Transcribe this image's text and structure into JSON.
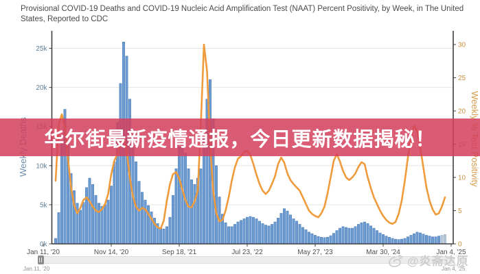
{
  "title": "Provisional COVID-19 Deaths and COVID-19 Nucleic Acid Amplification Test (NAAT) Percent Positivity, by Week, in The United States, Reported to CDC",
  "banner": {
    "text": "华尔街最新疫情通报，今日更新数据揭秘！",
    "bg_rgba": "rgba(211,62,92,0.85)",
    "text_color": "#ffffff"
  },
  "slider": {
    "left_label": "Jan 11, '20",
    "right_label": "Jan 4, '25"
  },
  "watermark": {
    "icon": "weibo-eye-icon",
    "text": "@炎斋达原"
  },
  "chart_data": {
    "type": "bar",
    "subtype": "bar+line combo, weekly time series",
    "title": "Provisional COVID-19 Deaths and COVID-19 NAAT Percent Positivity, by Week, in The United States, Reported to CDC",
    "x_start": "Jan 11, '20",
    "x_end": "Jan 4, '25",
    "x_step_weeks_per_point": 2,
    "x_tick_labels": [
      "Jan 11, '20",
      "Nov 14, '20",
      "Sep 18, '21",
      "Jul 23, '22",
      "May 27, '23",
      "Mar 30, '24",
      "Jan 4, '25"
    ],
    "grid": true,
    "legend_position": "none",
    "left_axis": {
      "label": "Weekly Deaths",
      "tick_values": [
        0,
        5,
        10,
        15,
        20,
        25
      ],
      "tick_labels": [
        "0k",
        "5k",
        "10k",
        "15k",
        "20k",
        "25k"
      ],
      "range_k": [
        0,
        27.2
      ],
      "label_color": "#6e8fab",
      "tick_color": "#5f7d95"
    },
    "right_axis": {
      "label": "Weekly % Test Positivity",
      "tick_values": [
        0,
        5,
        10,
        15,
        20,
        25,
        30
      ],
      "tick_labels": [
        "0",
        "5",
        "10",
        "15",
        "20",
        "25",
        "30"
      ],
      "range_pct": [
        0,
        32
      ],
      "label_color": "#d79a4a",
      "tick_color": "#c98f3e"
    },
    "series": [
      {
        "name": "Weekly Deaths",
        "type": "bar",
        "axis": "left",
        "unit": "thousands of deaths per week",
        "color": "#6d9bd3",
        "stroke": "#4d7fb5",
        "provisional_color": "#b7c6d6",
        "provisional_count": 2,
        "values": [
          0,
          0,
          0,
          0.05,
          0.7,
          4,
          13,
          17.2,
          13,
          9,
          6.8,
          5.2,
          4.3,
          5.3,
          7.2,
          8.4,
          7.6,
          6.2,
          5.2,
          4.8,
          5,
          5.6,
          7.4,
          10.5,
          15.5,
          20.5,
          25.8,
          24,
          18.5,
          14,
          10.5,
          8,
          6.6,
          5.6,
          4.9,
          4.1,
          3.3,
          2.6,
          2.1,
          1.9,
          2.2,
          3.4,
          6.2,
          9.6,
          12.4,
          13,
          11.6,
          9.6,
          8.2,
          7.6,
          8.4,
          9.6,
          13.5,
          18.5,
          21,
          16,
          10,
          6,
          3.8,
          2.7,
          2.2,
          2.2,
          2.5,
          2.8,
          3,
          3.2,
          3.4,
          3.5,
          3.4,
          3.2,
          2.9,
          2.6,
          2.4,
          2.3,
          2.5,
          2.8,
          3.3,
          3.9,
          4.5,
          4.2,
          3.7,
          3.2,
          2.9,
          2.5,
          2.1,
          1.8,
          1.5,
          1.3,
          1.1,
          0.95,
          0.85,
          0.8,
          0.85,
          1.05,
          1.35,
          1.7,
          2,
          2.2,
          2.1,
          2,
          2,
          2.2,
          2.5,
          2.7,
          2.8,
          2.6,
          2.3,
          2,
          1.7,
          1.4,
          1.2,
          1,
          0.85,
          0.7,
          0.6,
          0.55,
          0.6,
          0.7,
          0.9,
          1.1,
          1.3,
          1.5,
          1.4,
          1.25,
          1.1,
          1,
          0.9,
          0.9,
          1,
          1.1,
          1.2
        ]
      },
      {
        "name": "Weekly % Test Positivity",
        "type": "line",
        "axis": "right",
        "unit": "percent",
        "color": "#ef9b3c",
        "values": [
          null,
          null,
          null,
          null,
          9.5,
          18,
          19.5,
          17.5,
          12.8,
          8.5,
          5.8,
          4.6,
          5.4,
          6.6,
          7,
          6.4,
          5.6,
          5,
          4.8,
          5.2,
          6,
          7.5,
          10.5,
          12.5,
          13.5,
          15,
          16,
          14,
          10,
          7.2,
          5.6,
          5,
          5.4,
          5.2,
          4.5,
          3.8,
          3,
          2.5,
          2.3,
          3.5,
          6.5,
          9,
          10.5,
          10.8,
          9.8,
          8.2,
          6.6,
          5.6,
          5.5,
          6.4,
          8,
          18,
          30,
          26,
          15,
          8,
          4.6,
          3.4,
          3.6,
          5,
          7,
          9.5,
          11.5,
          12.8,
          13.2,
          13.8,
          14,
          13.4,
          12,
          10.4,
          9,
          8,
          7.5,
          8,
          9,
          10.2,
          12,
          13,
          12.2,
          10.6,
          9.6,
          9,
          8.5,
          8,
          7,
          6,
          5,
          4.5,
          4.2,
          4,
          4.6,
          5.6,
          7.6,
          10,
          12.5,
          13.5,
          12.4,
          11,
          10,
          9.6,
          10,
          10.6,
          11.6,
          12.3,
          12,
          10,
          8.4,
          7,
          6,
          5,
          4.2,
          3.6,
          3.2,
          3,
          3.3,
          4.5,
          6.5,
          9.5,
          13,
          16,
          17.8,
          17,
          14.5,
          11.5,
          8.5,
          6.5,
          5.2,
          4.4,
          4.6,
          5.6,
          7
        ]
      }
    ],
    "colors": {
      "gridline": "#e4e4e4",
      "spine": "#3f3f3f",
      "x_label": "#4f4f4f"
    }
  }
}
